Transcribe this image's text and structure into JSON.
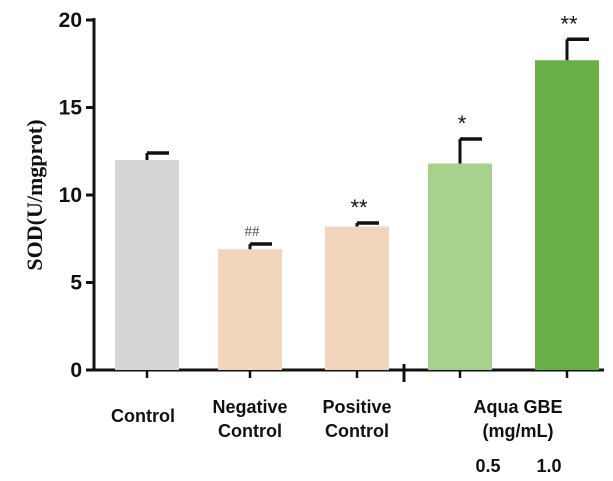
{
  "chart_data": {
    "type": "bar",
    "title": "",
    "xlabel": "",
    "ylabel": "SOD(U/mgprot)",
    "ylim": [
      0,
      20
    ],
    "yticks": [
      0,
      5,
      10,
      15,
      20
    ],
    "grid": false,
    "categories": [
      "Control",
      "Negative Control",
      "Positive Control",
      "Aqua GBE 0.5 (mg/mL)",
      "Aqua GBE 1.0 (mg/mL)"
    ],
    "values": [
      12.0,
      6.9,
      8.2,
      11.8,
      17.7
    ],
    "errors": [
      0.4,
      0.3,
      0.2,
      1.4,
      1.2
    ],
    "significance": [
      "",
      "##",
      "**",
      "*",
      "**"
    ],
    "colors": [
      "#d6d6d6",
      "#f2d5bd",
      "#f2d5bd",
      "#a9d18e",
      "#6aaf45"
    ],
    "category_labels": [
      [
        "Control"
      ],
      [
        "Negative",
        "Control"
      ],
      [
        "Positive",
        "Control"
      ],
      [],
      []
    ],
    "group_label": [
      "Aqua GBE",
      "(mg/mL)"
    ],
    "dose_labels": [
      "0.5",
      "1.0"
    ]
  }
}
